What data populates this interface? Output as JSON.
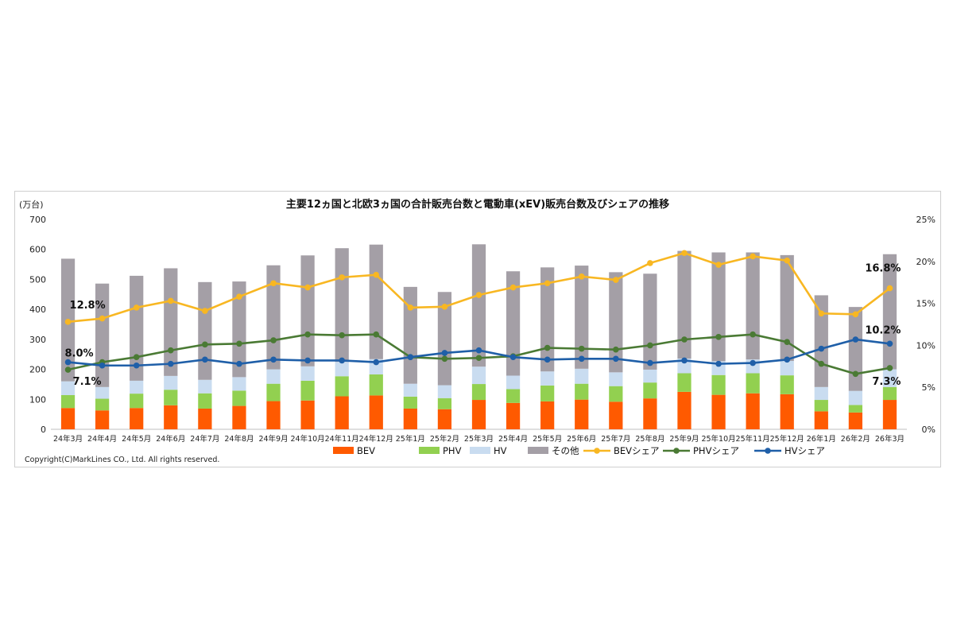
{
  "chart_data": {
    "type": "bar",
    "title": "主要12ヵ国と北欧3ヵ国の合計販売台数と電動車(xEV)販売台数及びシェアの推移",
    "ylabel": "(万台)",
    "ylim": [
      0,
      700
    ],
    "y_ticks": [
      "0",
      "100",
      "200",
      "300",
      "400",
      "500",
      "600",
      "700"
    ],
    "y2lim": [
      0,
      25
    ],
    "y2_ticks": [
      "0%",
      "5%",
      "10%",
      "15%",
      "20%",
      "25%"
    ],
    "stacked": true,
    "categories": [
      "24年3月",
      "24年4月",
      "24年5月",
      "24年6月",
      "24年7月",
      "24年8月",
      "24年9月",
      "24年10月",
      "24年11月",
      "24年12月",
      "25年1月",
      "25年2月",
      "25年3月",
      "25年4月",
      "25年5月",
      "25年6月",
      "25年7月",
      "25年8月",
      "25年9月",
      "25年10月",
      "25年11月",
      "25年12月",
      "26年1月",
      "26年2月",
      "26年3月"
    ],
    "series": [
      {
        "name": "BEV",
        "color": "#ff5a00",
        "values": [
          71,
          63,
          71,
          80,
          69,
          78,
          94,
          96,
          110,
          113,
          69,
          67,
          98,
          88,
          93,
          99,
          92,
          103,
          125,
          115,
          120,
          117,
          60,
          56,
          98
        ]
      },
      {
        "name": "PHV",
        "color": "#92d050",
        "values": [
          43,
          39,
          48,
          52,
          51,
          51,
          58,
          66,
          67,
          70,
          40,
          37,
          53,
          46,
          53,
          53,
          52,
          53,
          62,
          66,
          67,
          63,
          38,
          25,
          43
        ]
      },
      {
        "name": "HV",
        "color": "#c9dcf0",
        "values": [
          46,
          39,
          43,
          46,
          45,
          45,
          48,
          48,
          48,
          51,
          43,
          43,
          58,
          45,
          47,
          50,
          46,
          43,
          49,
          46,
          46,
          48,
          43,
          47,
          59
        ]
      },
      {
        "name": "その他",
        "color": "#a49fa6",
        "values": [
          409,
          345,
          350,
          359,
          326,
          319,
          347,
          370,
          379,
          382,
          323,
          311,
          408,
          348,
          347,
          344,
          334,
          320,
          359,
          363,
          357,
          353,
          306,
          280,
          384
        ]
      },
      {
        "name": "BEVシェア",
        "type": "line",
        "axis": "right",
        "color": "#f8b722",
        "values": [
          12.8,
          13.2,
          14.5,
          15.3,
          14.1,
          15.8,
          17.4,
          16.9,
          18.1,
          18.4,
          14.5,
          14.6,
          16.0,
          16.9,
          17.4,
          18.2,
          17.8,
          19.8,
          21.0,
          19.6,
          20.6,
          20.1,
          13.8,
          13.7,
          16.8
        ]
      },
      {
        "name": "PHVシェア",
        "type": "line",
        "axis": "right",
        "color": "#4a7a34",
        "values": [
          7.1,
          8.0,
          8.6,
          9.4,
          10.1,
          10.2,
          10.6,
          11.3,
          11.2,
          11.3,
          8.6,
          8.4,
          8.5,
          8.7,
          9.7,
          9.6,
          9.5,
          10.0,
          10.7,
          11.0,
          11.3,
          10.4,
          7.8,
          6.6,
          7.3
        ]
      },
      {
        "name": "HVシェア",
        "type": "line",
        "axis": "right",
        "color": "#1f5fa8",
        "values": [
          8.0,
          7.6,
          7.6,
          7.8,
          8.3,
          7.8,
          8.3,
          8.2,
          8.2,
          8.0,
          8.6,
          9.1,
          9.4,
          8.6,
          8.3,
          8.4,
          8.4,
          7.9,
          8.2,
          7.8,
          7.9,
          8.3,
          9.6,
          10.7,
          10.2
        ]
      }
    ],
    "data_labels": [
      {
        "series": "BEVシェア",
        "index": 0,
        "text": "12.8%"
      },
      {
        "series": "HVシェア",
        "index": 0,
        "text": "8.0%"
      },
      {
        "series": "PHVシェア",
        "index": 0,
        "text": "7.1%"
      },
      {
        "series": "BEVシェア",
        "index": 24,
        "text": "16.8%"
      },
      {
        "series": "HVシェア",
        "index": 24,
        "text": "10.2%"
      },
      {
        "series": "PHVシェア",
        "index": 24,
        "text": "7.3%"
      }
    ],
    "legend_position": "bottom",
    "grid": false,
    "copyright": "Copyright(C)MarkLines CO., Ltd. All rights reserved."
  }
}
